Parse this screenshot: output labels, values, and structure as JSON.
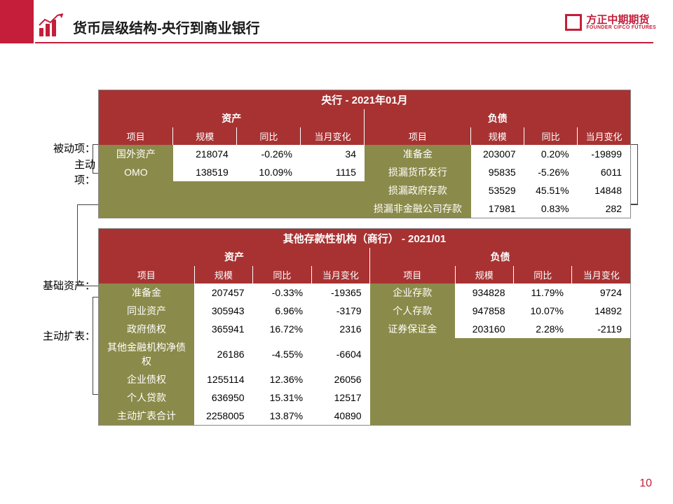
{
  "header": {
    "title": "货币层级结构-央行到商业银行",
    "logo_text": "方正中期期货",
    "logo_sub": "FOUNDER CIFCO FUTURES"
  },
  "page_number": "10",
  "side_labels": {
    "passive": "被动项：",
    "active": "主动",
    "active2": "项：",
    "base_assets": "基础资产：",
    "active_expand": "主动扩表："
  },
  "table1": {
    "title": "央行 - 2021年01月",
    "sections": [
      "资产",
      "负债"
    ],
    "columns_left": [
      "项目",
      "规模",
      "同比",
      "当月变化"
    ],
    "columns_right": [
      "项目",
      "规模",
      "同比",
      "当月变化"
    ],
    "rows": [
      {
        "l_item": "国外资产",
        "l_scale": "218074",
        "l_yoy": "-0.26%",
        "l_chg": "34",
        "r_item": "准备金",
        "r_scale": "203007",
        "r_yoy": "0.20%",
        "r_chg": "-19899"
      },
      {
        "l_item": "OMO",
        "l_scale": "138519",
        "l_yoy": "10.09%",
        "l_chg": "1115",
        "r_item": "损漏货币发行",
        "r_scale": "95835",
        "r_yoy": "-5.26%",
        "r_chg": "6011"
      },
      {
        "l_item": "",
        "l_scale": "",
        "l_yoy": "",
        "l_chg": "",
        "r_item": "损漏政府存款",
        "r_scale": "53529",
        "r_yoy": "45.51%",
        "r_chg": "14848"
      },
      {
        "l_item": "",
        "l_scale": "",
        "l_yoy": "",
        "l_chg": "",
        "r_item": "损漏非金融公司存款",
        "r_scale": "17981",
        "r_yoy": "0.83%",
        "r_chg": "282"
      }
    ]
  },
  "table2": {
    "title": "其他存款性机构（商行） - 2021/01",
    "sections": [
      "资产",
      "负债"
    ],
    "columns_left": [
      "项目",
      "规模",
      "同比",
      "当月变化"
    ],
    "columns_right": [
      "项目",
      "规模",
      "同比",
      "当月变化"
    ],
    "rows": [
      {
        "l_item": "准备金",
        "l_scale": "207457",
        "l_yoy": "-0.33%",
        "l_chg": "-19365",
        "r_item": "企业存款",
        "r_scale": "934828",
        "r_yoy": "11.79%",
        "r_chg": "9724"
      },
      {
        "l_item": "同业资产",
        "l_scale": "305943",
        "l_yoy": "6.96%",
        "l_chg": "-3179",
        "r_item": "个人存款",
        "r_scale": "947858",
        "r_yoy": "10.07%",
        "r_chg": "14892"
      },
      {
        "l_item": "政府债权",
        "l_scale": "365941",
        "l_yoy": "16.72%",
        "l_chg": "2316",
        "r_item": "证券保证金",
        "r_scale": "203160",
        "r_yoy": "2.28%",
        "r_chg": "-2119"
      },
      {
        "l_item": "其他金融机构净债权",
        "l_scale": "26186",
        "l_yoy": "-4.55%",
        "l_chg": "-6604",
        "r_item": "",
        "r_scale": "",
        "r_yoy": "",
        "r_chg": ""
      },
      {
        "l_item": "企业债权",
        "l_scale": "1255114",
        "l_yoy": "12.36%",
        "l_chg": "26056",
        "r_item": "",
        "r_scale": "",
        "r_yoy": "",
        "r_chg": ""
      },
      {
        "l_item": "个人贷款",
        "l_scale": "636950",
        "l_yoy": "15.31%",
        "l_chg": "12517",
        "r_item": "",
        "r_scale": "",
        "r_yoy": "",
        "r_chg": ""
      },
      {
        "l_item": "主动扩表合计",
        "l_scale": "2258005",
        "l_yoy": "13.87%",
        "l_chg": "40890",
        "r_item": "",
        "r_scale": "",
        "r_yoy": "",
        "r_chg": ""
      }
    ]
  },
  "colors": {
    "primary_red": "#c41e3a",
    "header_red": "#a83232",
    "olive": "#8a8a4a",
    "white": "#ffffff",
    "text": "#000000"
  }
}
